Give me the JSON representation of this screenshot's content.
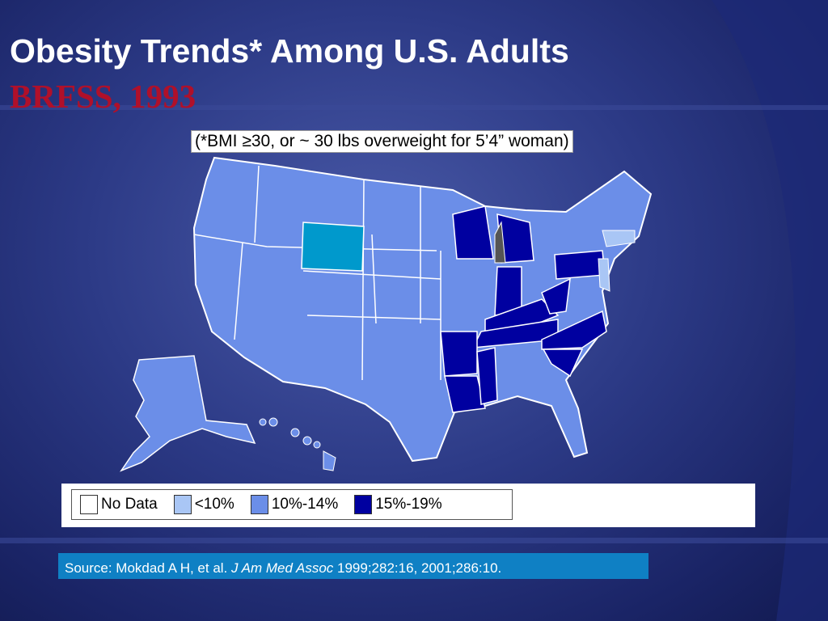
{
  "title": "Obesity Trends* Among U.S. Adults",
  "subtitle": "BRFSS, 1993",
  "note": "(*BMI ≥30, or ~ 30 lbs overweight for 5’4” woman)",
  "legend": {
    "items": [
      "No Data",
      "<10%",
      "10%-14%",
      "15%-19%"
    ]
  },
  "source": {
    "prefix": "Source: Mokdad A H, et al. ",
    "journal": "J Am Med Assoc",
    "suffix": " 1999;282:16, 2001;286:10."
  }
}
